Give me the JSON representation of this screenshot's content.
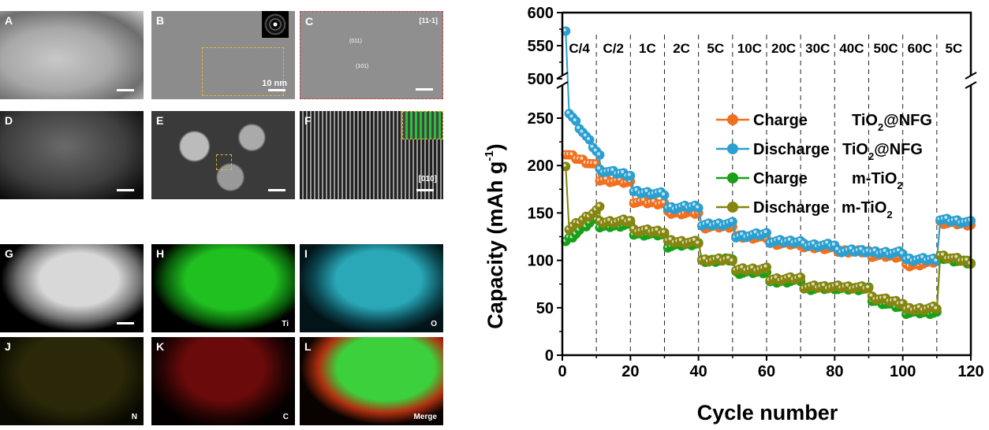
{
  "figure": {
    "panels": [
      {
        "label": "A",
        "kind": "TEM",
        "scalebar": ""
      },
      {
        "label": "B",
        "kind": "HRTEM with SAED inset",
        "scalebar": "10 nm"
      },
      {
        "label": "C",
        "kind": "HRTEM",
        "annotations": [
          "[11-1]",
          "(011)",
          "(101)"
        ]
      },
      {
        "label": "D",
        "kind": "HAADF-STEM"
      },
      {
        "label": "E",
        "kind": "HAADF-STEM"
      },
      {
        "label": "F",
        "kind": "atomic-resolution STEM",
        "annotations": [
          "[010]"
        ]
      },
      {
        "label": "G",
        "kind": "STEM",
        "corner": ""
      },
      {
        "label": "H",
        "kind": "EDS map",
        "corner": "Ti"
      },
      {
        "label": "I",
        "kind": "EDS map",
        "corner": "O"
      },
      {
        "label": "J",
        "kind": "EDS map",
        "corner": "N"
      },
      {
        "label": "K",
        "kind": "EDS map",
        "corner": "C"
      },
      {
        "label": "L",
        "kind": "EDS map",
        "corner": "Merge"
      }
    ],
    "colors": {
      "H": "#1ec81e",
      "I": "#2ab8c8",
      "J": "#b8b020",
      "K": "#d01818"
    }
  },
  "chart_data": {
    "type": "line",
    "title": "",
    "xlabel": "Cycle number",
    "ylabel": "Capacity (mAh g-1)",
    "ylabel_main": "Capacity (mAh g",
    "ylabel_sup": "-1",
    "ylabel_close": ")",
    "xlim": [
      0,
      120
    ],
    "ylim_lower": [
      0,
      275
    ],
    "ylim_upper": [
      500,
      600
    ],
    "axis_break": [
      275,
      500
    ],
    "x_ticks": [
      "0",
      "20",
      "40",
      "60",
      "80",
      "100",
      "120"
    ],
    "y_ticks_lower": [
      "0",
      "50",
      "100",
      "150",
      "200",
      "250"
    ],
    "y_ticks_upper": [
      "500",
      "550",
      "600"
    ],
    "rate_dividers": [
      10,
      20,
      30,
      40,
      50,
      60,
      70,
      80,
      90,
      100,
      110
    ],
    "rate_labels": [
      "C/4",
      "C/2",
      "1C",
      "2C",
      "5C",
      "10C",
      "20C",
      "30C",
      "40C",
      "50C",
      "60C",
      "5C"
    ],
    "legend": {
      "position": "top-right",
      "entries": [
        {
          "name": "Charge",
          "material": "TiO",
          "sub": "2",
          "suffix": "@NFG"
        },
        {
          "name": "Discharge",
          "material": "TiO",
          "sub": "2",
          "suffix": "@NFG"
        },
        {
          "name": "Charge",
          "material": "m-TiO",
          "sub": "2",
          "suffix": ""
        },
        {
          "name": "Discharge",
          "material": "m-TiO",
          "sub": "2",
          "suffix": ""
        }
      ]
    },
    "series": [
      {
        "name": "Charge TiO2@NFG",
        "color": "#f07020",
        "segments": [
          [
            1,
            212,
            200
          ],
          [
            11,
            185,
            182
          ],
          [
            21,
            162,
            160
          ],
          [
            31,
            150,
            150
          ],
          [
            41,
            135,
            136
          ],
          [
            51,
            125,
            124
          ],
          [
            61,
            118,
            117
          ],
          [
            71,
            114,
            113
          ],
          [
            81,
            110,
            109
          ],
          [
            91,
            105,
            104
          ],
          [
            101,
            94,
            99
          ],
          [
            111,
            140,
            138
          ]
        ]
      },
      {
        "name": "Discharge TiO2@NFG",
        "color": "#2a9fd0",
        "first": 572,
        "segments": [
          [
            2,
            256,
            210
          ],
          [
            11,
            195,
            190
          ],
          [
            21,
            172,
            170
          ],
          [
            31,
            155,
            157
          ],
          [
            41,
            137,
            139
          ],
          [
            51,
            125,
            128
          ],
          [
            61,
            120,
            120
          ],
          [
            71,
            116,
            116
          ],
          [
            81,
            110,
            110
          ],
          [
            91,
            108,
            108
          ],
          [
            101,
            101,
            101
          ],
          [
            111,
            143,
            140
          ]
        ]
      },
      {
        "name": "Charge m-TiO2",
        "color": "#18a018",
        "segments": [
          [
            1,
            120,
            145
          ],
          [
            11,
            135,
            138
          ],
          [
            21,
            128,
            127
          ],
          [
            31,
            115,
            118
          ],
          [
            41,
            99,
            101
          ],
          [
            51,
            87,
            88
          ],
          [
            61,
            77,
            79
          ],
          [
            71,
            70,
            71
          ],
          [
            81,
            70,
            70
          ],
          [
            91,
            58,
            50
          ],
          [
            101,
            45,
            45
          ],
          [
            111,
            103,
            97
          ]
        ]
      },
      {
        "name": "Discharge m-TiO2",
        "color": "#858510",
        "first": 199,
        "segments": [
          [
            2,
            133,
            155
          ],
          [
            11,
            140,
            142
          ],
          [
            21,
            132,
            130
          ],
          [
            31,
            120,
            119
          ],
          [
            41,
            100,
            101
          ],
          [
            51,
            90,
            91
          ],
          [
            61,
            80,
            81
          ],
          [
            71,
            72,
            72
          ],
          [
            81,
            72,
            71
          ],
          [
            91,
            61,
            55
          ],
          [
            101,
            48,
            50
          ],
          [
            111,
            105,
            98
          ]
        ]
      }
    ]
  }
}
